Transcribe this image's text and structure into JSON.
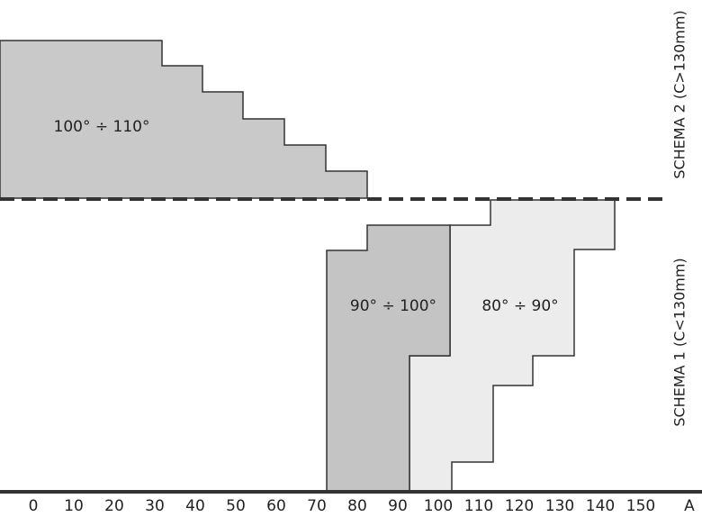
{
  "regions": [
    {
      "label": "100° ÷ 110°"
    },
    {
      "label": "90° ÷ 100°"
    },
    {
      "label": "80° ÷ 90°"
    }
  ],
  "schemes": [
    {
      "label": "SCHEMA 2 (C>130mm)"
    },
    {
      "label": "SCHEMA 1 (C<130mm)"
    }
  ],
  "axis": {
    "ticks": [
      "0",
      "10",
      "20",
      "30",
      "40",
      "50",
      "60",
      "70",
      "80",
      "90",
      "100",
      "110",
      "120",
      "130",
      "140",
      "150"
    ],
    "label": "A"
  }
}
